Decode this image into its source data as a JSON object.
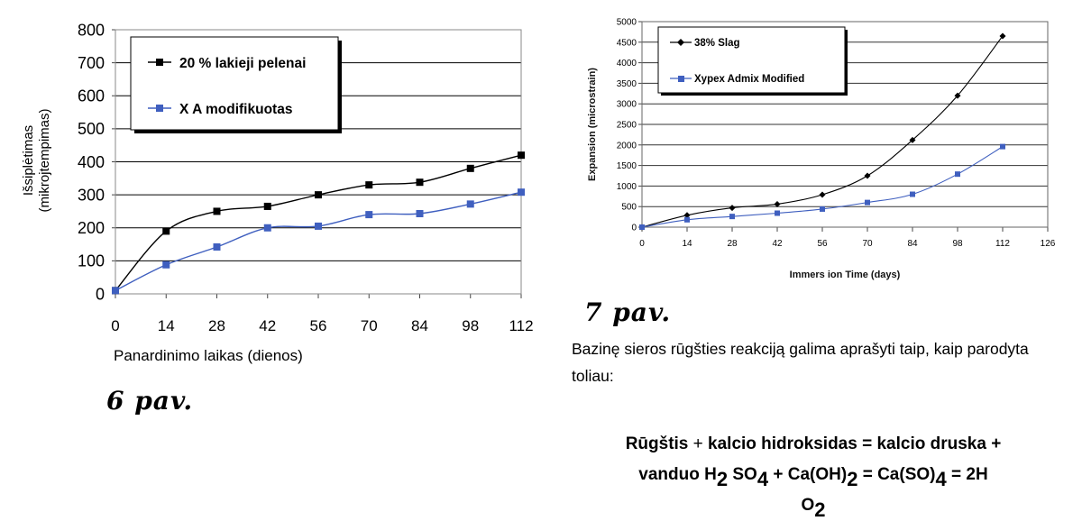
{
  "figure6": {
    "caption": "6 pav.",
    "chart_data": {
      "type": "line",
      "x": [
        0,
        14,
        28,
        42,
        56,
        70,
        84,
        98,
        112
      ],
      "xticks": [
        "0",
        "14",
        "28",
        "42",
        "56",
        "70",
        "84",
        "98",
        "112"
      ],
      "yticks": [
        "0",
        "100",
        "200",
        "300",
        "400",
        "500",
        "600",
        "700",
        "800"
      ],
      "ylim": [
        0,
        800
      ],
      "xlabel": "Panardinimo laikas  (dienos)",
      "ylabel": "Išsiplėtimas",
      "ylabel2": "(mikrojtempimas)",
      "grid": true,
      "legend_position": "top-left",
      "series": [
        {
          "name": "20 % lakieji pelenai",
          "color": "#000000",
          "values": [
            10,
            190,
            250,
            265,
            300,
            330,
            338,
            380,
            420
          ]
        },
        {
          "name": "X A modifikuotas",
          "color": "#3f5fbf",
          "values": [
            10,
            88,
            142,
            200,
            205,
            240,
            243,
            272,
            308
          ]
        }
      ]
    }
  },
  "figure7": {
    "caption": "7 pav.",
    "chart_data": {
      "type": "line",
      "x": [
        0,
        14,
        28,
        42,
        56,
        70,
        84,
        98,
        112
      ],
      "xticks": [
        "0",
        "14",
        "28",
        "42",
        "56",
        "70",
        "84",
        "98",
        "112",
        "126"
      ],
      "xlim": [
        0,
        126
      ],
      "yticks": [
        "0",
        "500",
        "1000",
        "1500",
        "2000",
        "2500",
        "3000",
        "3500",
        "4000",
        "4500",
        "5000"
      ],
      "ylim": [
        0,
        5000
      ],
      "xlabel": "Immers ion Time (days)",
      "ylabel": "Expansion (microstrain)",
      "grid": true,
      "legend_position": "top-left",
      "series": [
        {
          "name": "38% Slag",
          "color": "#000000",
          "values": [
            0,
            290,
            470,
            560,
            790,
            1250,
            2120,
            3200,
            4650
          ]
        },
        {
          "name": "Xypex Admix Modified",
          "color": "#3f5fbf",
          "values": [
            0,
            180,
            260,
            340,
            440,
            600,
            800,
            1290,
            1960
          ]
        }
      ]
    }
  },
  "text": {
    "paragraph": "Bazinę sieros rūgšties reakciją galima aprašyti taip, kaip parodyta toliau:",
    "eq_p1": "Rūgštis",
    "eq_p2": " + ",
    "eq_p3": "kalcio hidroksidas = kalcio druska +",
    "eq_p4": "vanduo H",
    "eq_p5": "2",
    "eq_p6": " SO",
    "eq_p7": "4",
    "eq_p8": "  + Ca(OH)",
    "eq_p9": "2",
    "eq_p10": "  = Ca(SO)",
    "eq_p11": "4",
    "eq_p12": "  = 2H",
    "eq_p13": "O",
    "eq_p14": "2"
  }
}
